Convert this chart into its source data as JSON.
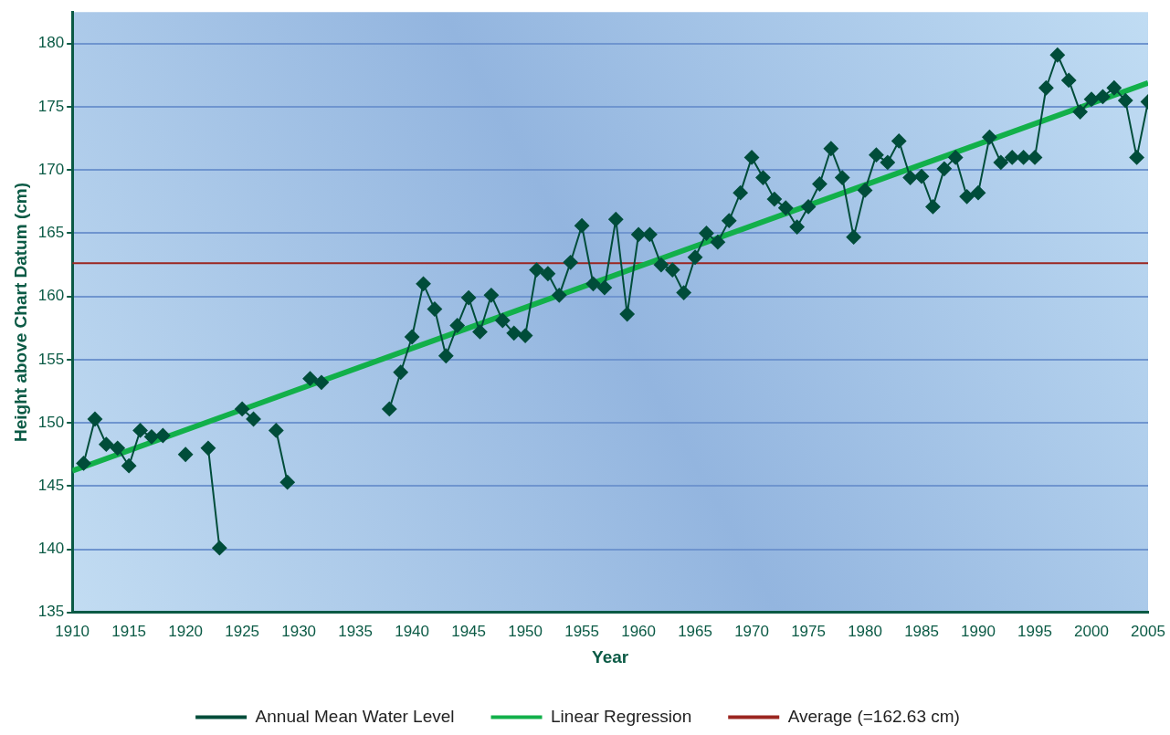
{
  "chart_data": {
    "type": "line",
    "xlabel": "Year",
    "ylabel": "Height above Chart Datum (cm)",
    "x": [
      1911,
      1912,
      1913,
      1914,
      1915,
      1916,
      1917,
      1918,
      1919,
      1920,
      1921,
      1922,
      1923,
      1924,
      1925,
      1926,
      1927,
      1928,
      1929,
      1930,
      1931,
      1932,
      1933,
      1934,
      1935,
      1936,
      1937,
      1938,
      1939,
      1940,
      1941,
      1942,
      1943,
      1944,
      1945,
      1946,
      1947,
      1948,
      1949,
      1950,
      1951,
      1952,
      1953,
      1954,
      1955,
      1956,
      1957,
      1958,
      1959,
      1960,
      1961,
      1962,
      1963,
      1964,
      1965,
      1966,
      1967,
      1968,
      1969,
      1970,
      1971,
      1972,
      1973,
      1974,
      1975,
      1976,
      1977,
      1978,
      1979,
      1980,
      1981,
      1982,
      1983,
      1984,
      1985,
      1986,
      1987,
      1988,
      1989,
      1990,
      1991,
      1992,
      1993,
      1994,
      1995,
      1996,
      1997,
      1998,
      1999,
      2000,
      2001,
      2002,
      2003,
      2004,
      2005
    ],
    "series": [
      {
        "name": "Annual Mean Water Level",
        "color": "#004d3a",
        "marker": "diamond",
        "values": [
          146.8,
          150.3,
          148.3,
          148.0,
          146.6,
          149.4,
          148.9,
          149.0,
          null,
          147.5,
          null,
          148.0,
          140.1,
          null,
          151.1,
          150.3,
          null,
          149.4,
          145.3,
          null,
          153.5,
          153.2,
          null,
          null,
          null,
          null,
          null,
          151.1,
          154.0,
          156.8,
          161.0,
          159.0,
          155.3,
          157.7,
          159.9,
          157.2,
          160.1,
          158.1,
          157.1,
          156.9,
          162.1,
          161.8,
          160.1,
          162.7,
          165.6,
          161.0,
          160.7,
          166.1,
          158.6,
          164.9,
          164.9,
          162.5,
          162.1,
          160.3,
          163.1,
          165.0,
          164.3,
          166.0,
          168.2,
          171.0,
          169.4,
          167.7,
          167.0,
          165.5,
          167.1,
          168.9,
          171.7,
          169.4,
          164.7,
          168.4,
          171.2,
          170.6,
          172.3,
          169.4,
          169.5,
          167.1,
          170.1,
          171.0,
          167.9,
          168.2,
          172.6,
          170.6,
          171.0,
          171.0,
          171.0,
          176.5,
          179.1,
          177.1,
          174.6,
          175.6,
          175.8,
          176.5,
          175.5,
          171.0,
          175.4
        ]
      },
      {
        "name": "Linear Regression",
        "type": "line",
        "color": "#12b04a",
        "marker": "none",
        "x": [
          1910,
          2005
        ],
        "values": [
          146.2,
          176.9
        ]
      }
    ],
    "ref_lines": [
      {
        "axis": "y",
        "value": 162.63,
        "label": "Average (=162.63 cm)",
        "color": "#9b2620"
      }
    ],
    "xlim": [
      1910,
      2005
    ],
    "xticks": [
      1910,
      1915,
      1920,
      1925,
      1930,
      1935,
      1940,
      1945,
      1950,
      1955,
      1960,
      1965,
      1970,
      1975,
      1980,
      1985,
      1990,
      1995,
      2000,
      2005
    ],
    "ylim": [
      135,
      182.5
    ],
    "yticks": [
      135,
      140,
      145,
      150,
      155,
      160,
      165,
      170,
      175,
      180
    ],
    "grid": "y",
    "legend": "bottom"
  }
}
